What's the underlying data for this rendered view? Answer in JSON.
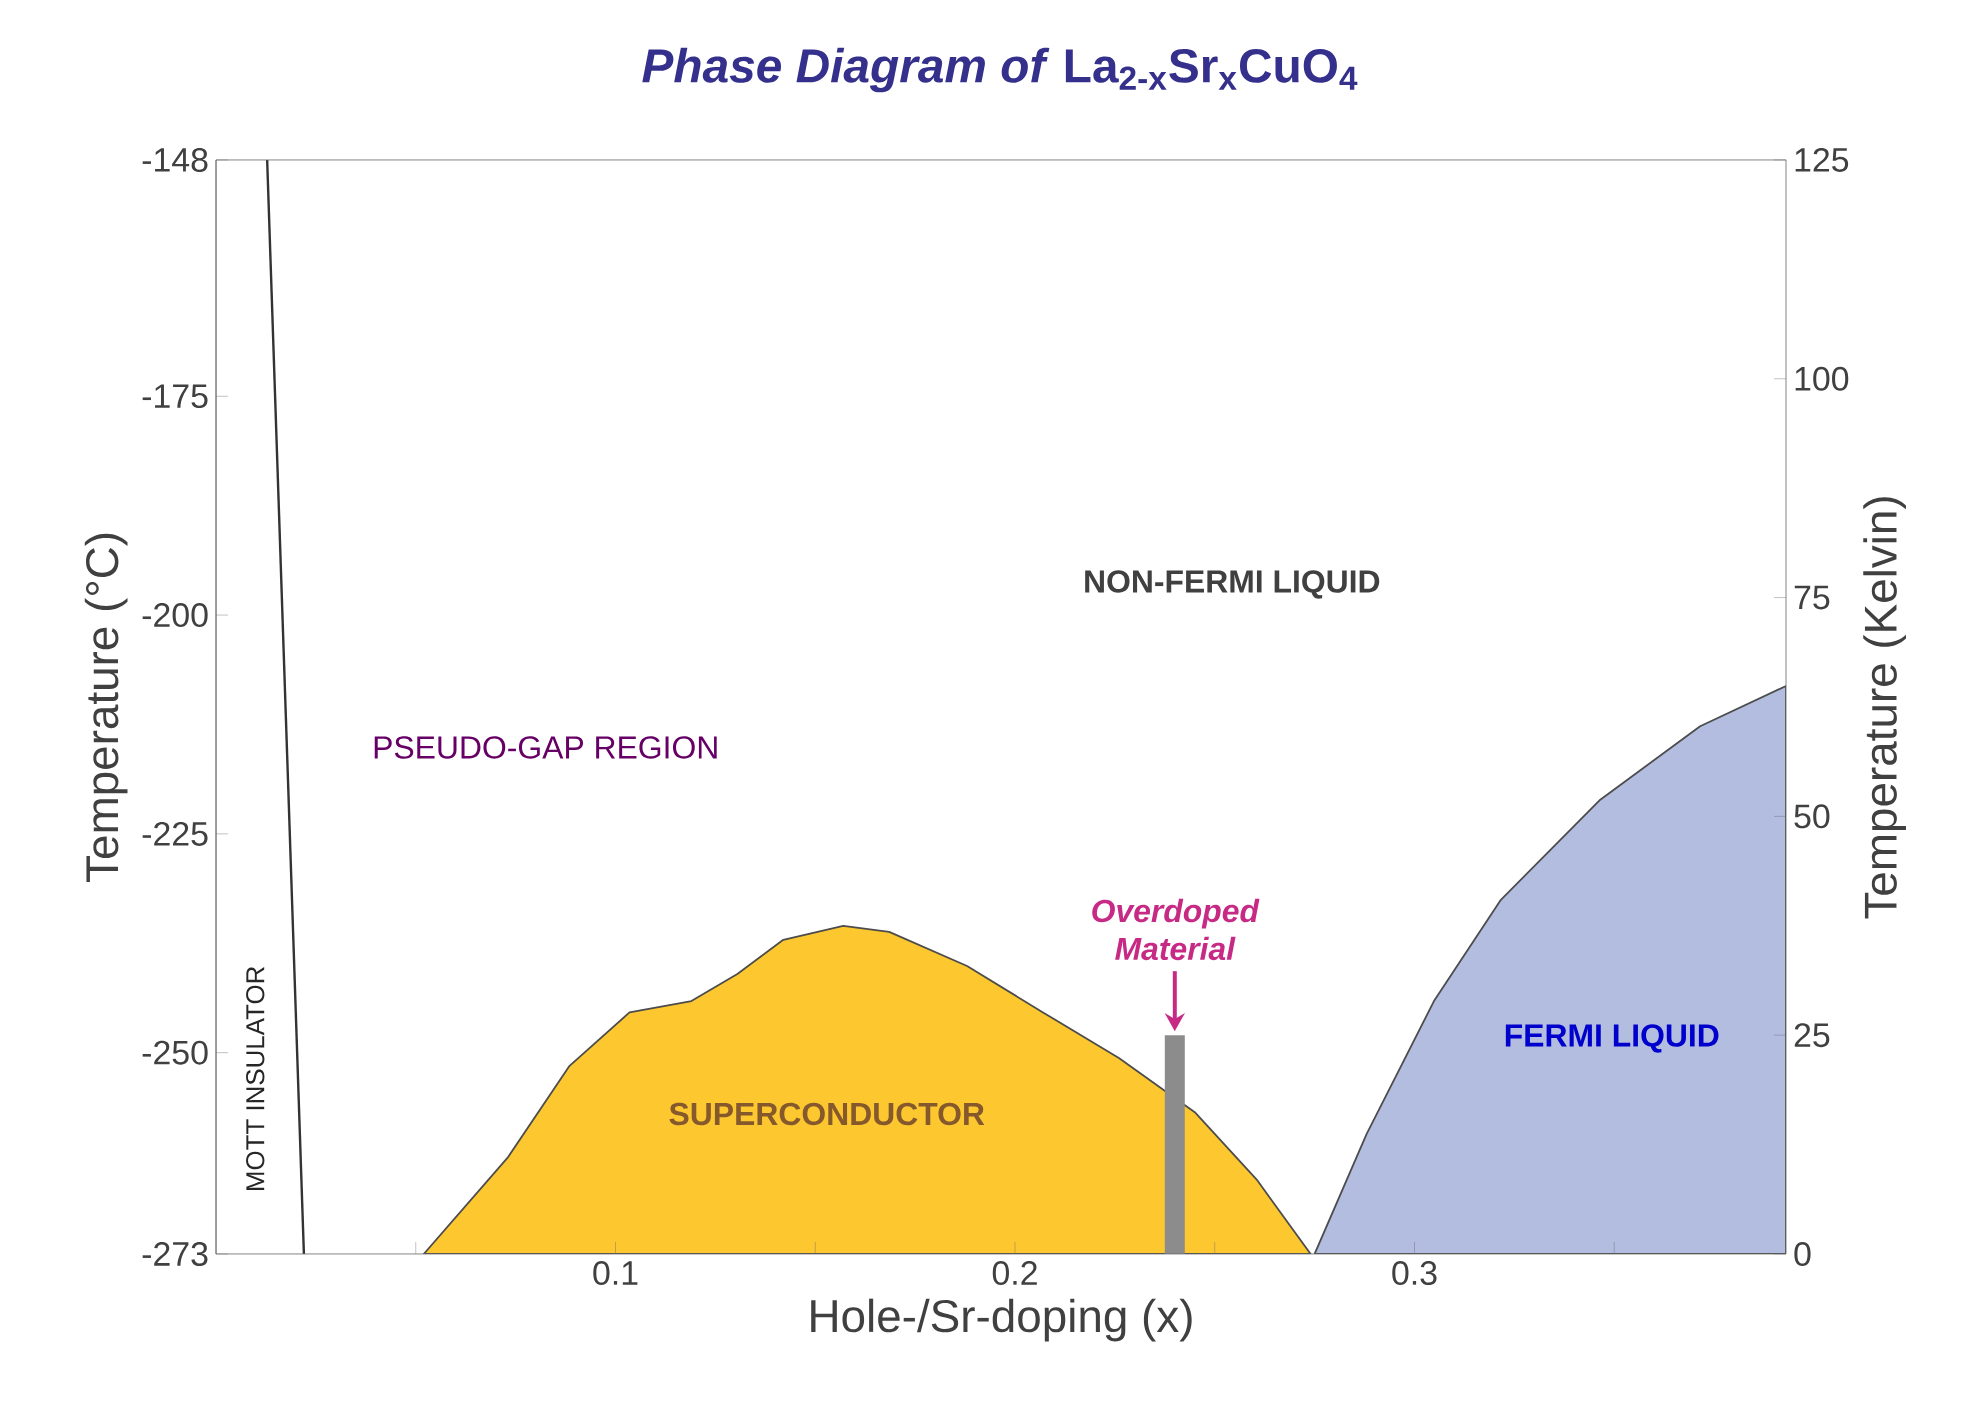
{
  "chart_data": {
    "type": "area",
    "title": "*Phase Diagram of* La$_{2-x}$Sr$_{x}$CuO$_{4}$",
    "xlabel": "Hole-/Sr-doping (x)",
    "ylabel": "Temperature (°C)",
    "y2label": "Temperature (Kelvin)",
    "xlim": [
      0,
      0.393
    ],
    "xticks": [
      {
        "value": 0.05,
        "label": null
      },
      0.1,
      {
        "value": 0.15,
        "label": null
      },
      0.2,
      {
        "value": 0.25,
        "label": null
      },
      0.3,
      {
        "value": 0.35,
        "label": null
      }
    ],
    "ylim": [
      -273,
      -148
    ],
    "yticks": [
      -273,
      -250,
      -225,
      -200,
      -175,
      -148
    ],
    "y2lim": [
      0,
      125
    ],
    "y2ticks": [
      0,
      25,
      50,
      75,
      100,
      125
    ],
    "series": [
      {
        "type": "line",
        "axis": "y2",
        "color": "#333333",
        "x": [
          0.0128,
          0.022
        ],
        "values": [
          125,
          0
        ]
      },
      {
        "axis": "y2",
        "color": "#fdc82f",
        "x": [
          0.052,
          0.073,
          0.0885,
          0.1035,
          0.119,
          0.1305,
          0.142,
          0.157,
          0.1685,
          0.188,
          0.207,
          0.226,
          0.245,
          0.2605,
          0.274
        ],
        "values": [
          0,
          11,
          21.5,
          27.6,
          28.9,
          32,
          35.9,
          37.5,
          36.8,
          32.9,
          27.6,
          22.4,
          16.2,
          8.5,
          0
        ]
      },
      {
        "axis": "y2",
        "color": "#b3bde0",
        "x": [
          0.275,
          0.288,
          0.305,
          0.3215,
          0.3465,
          0.3715,
          0.393
        ],
        "values": [
          0,
          13.7,
          29,
          40.4,
          51.9,
          60.3,
          64.9
        ]
      },
      {
        "type": "bar",
        "axis": "y2",
        "color": "#8c8c8c",
        "x": [
          0.24
        ],
        "values": [
          25
        ]
      }
    ],
    "annotations": [
      "NON-FERMI LIQUID",
      "PSEUDO-GAP REGION",
      "MOTT INSULATOR",
      "SUPERCONDUCTOR",
      "FERMI LIQUID",
      "Overdoped Material"
    ]
  }
}
